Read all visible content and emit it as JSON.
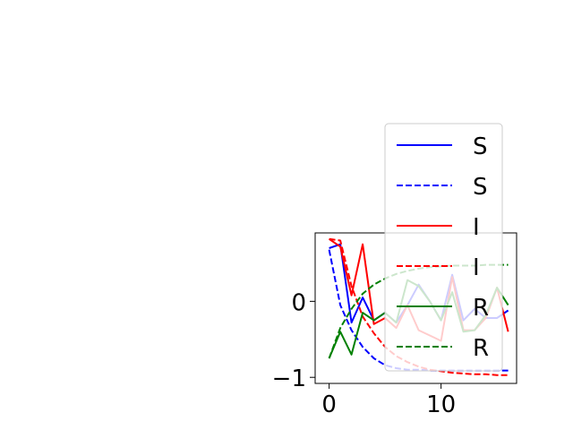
{
  "chart_data": {
    "type": "line",
    "title": "",
    "xlabel": "",
    "ylabel": "",
    "xlim": [
      -1.25,
      16.75
    ],
    "ylim": [
      -1.08,
      0.9
    ],
    "x_ticks": [
      0,
      10
    ],
    "x_tick_labels": [
      "0",
      "10"
    ],
    "y_ticks": [
      -1,
      0
    ],
    "y_tick_labels": [
      "−1",
      "0"
    ],
    "grid": false,
    "legend_position": "upper-right, overlapping the plot",
    "x": [
      0,
      1,
      2,
      3,
      4,
      5,
      6,
      7,
      8,
      9,
      10,
      11,
      12,
      13,
      14,
      15,
      16
    ],
    "series": [
      {
        "name": "S",
        "color": "#0000ff",
        "style": "solid",
        "values": [
          0.7,
          0.75,
          -0.28,
          0.05,
          -0.25,
          -0.15,
          -0.28,
          -0.05,
          0.22,
          0.0,
          -0.25,
          0.35,
          -0.25,
          -0.1,
          -0.22,
          -0.22,
          -0.12
        ]
      },
      {
        "name": "S",
        "color": "#0000ff",
        "style": "dashed",
        "values": [
          0.68,
          -0.05,
          -0.38,
          -0.6,
          -0.75,
          -0.84,
          -0.88,
          -0.9,
          -0.9,
          -0.91,
          -0.91,
          -0.91,
          -0.91,
          -0.91,
          -0.91,
          -0.91,
          -0.91
        ]
      },
      {
        "name": "I",
        "color": "#ff0000",
        "style": "solid",
        "values": [
          0.82,
          0.72,
          0.08,
          0.75,
          -0.3,
          -0.22,
          -0.35,
          -0.05,
          -0.38,
          -0.45,
          -0.52,
          0.32,
          -0.38,
          -0.38,
          -0.22,
          0.18,
          -0.4
        ]
      },
      {
        "name": "I",
        "color": "#ff0000",
        "style": "dashed",
        "values": [
          0.82,
          0.8,
          0.2,
          -0.2,
          -0.42,
          -0.6,
          -0.72,
          -0.8,
          -0.86,
          -0.9,
          -0.92,
          -0.94,
          -0.95,
          -0.96,
          -0.96,
          -0.97,
          -0.97
        ]
      },
      {
        "name": "R",
        "color": "#008000",
        "style": "solid",
        "values": [
          -0.75,
          -0.4,
          -0.7,
          -0.15,
          -0.25,
          -0.15,
          -0.28,
          0.28,
          0.2,
          0.0,
          -0.25,
          0.12,
          -0.4,
          -0.38,
          -0.18,
          0.18,
          -0.05
        ]
      },
      {
        "name": "R",
        "color": "#008000",
        "style": "dashed",
        "values": [
          -0.75,
          -0.35,
          -0.1,
          0.1,
          0.22,
          0.3,
          0.36,
          0.4,
          0.43,
          0.45,
          0.46,
          0.47,
          0.47,
          0.47,
          0.48,
          0.48,
          0.48
        ]
      }
    ]
  }
}
